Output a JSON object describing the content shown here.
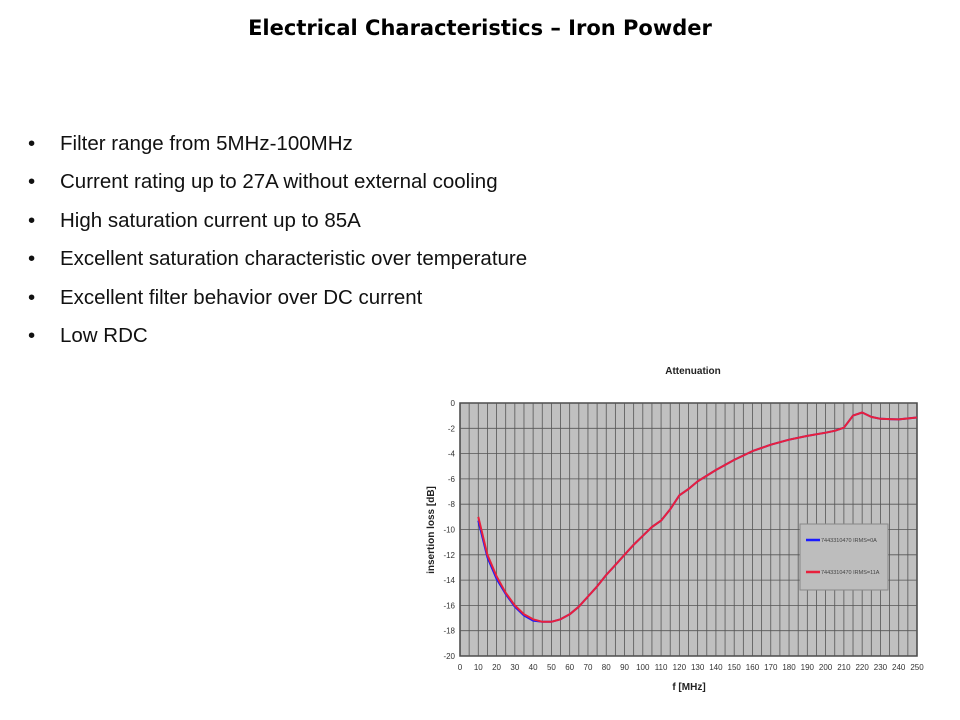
{
  "slide": {
    "title": "Electrical Characteristics – Iron Powder",
    "bullets": [
      "Filter range from 5MHz-100MHz",
      "Current rating up to 27A without external cooling",
      "High saturation current up to 85A",
      "Excellent saturation characteristic over temperature",
      "Excellent filter behavior over DC current",
      "Low RDC"
    ],
    "bullet_symbol": "•"
  },
  "chart_data": {
    "type": "line",
    "title": "Attenuation",
    "xlabel": "f [MHz]",
    "ylabel": "insertion loss  [dB]",
    "xlim": [
      0,
      250
    ],
    "ylim": [
      -20,
      0
    ],
    "xticks": [
      0,
      10,
      20,
      30,
      40,
      50,
      60,
      70,
      80,
      90,
      100,
      110,
      120,
      130,
      140,
      150,
      160,
      170,
      180,
      190,
      200,
      210,
      220,
      230,
      240,
      250
    ],
    "yticks": [
      0,
      -2,
      -4,
      -6,
      -8,
      -10,
      -12,
      -14,
      -16,
      -18,
      -20
    ],
    "grid": true,
    "legend_position": "right",
    "background": "#c0c0c0",
    "series": [
      {
        "name": "7443310470 IRMS=0A",
        "color": "#1a1aff",
        "x": [
          10,
          15,
          20,
          25,
          30,
          35,
          40,
          45,
          50,
          55,
          60,
          65,
          70,
          75,
          80,
          85,
          90,
          95,
          100,
          105,
          110,
          115,
          120,
          125,
          130,
          140,
          150,
          160,
          170,
          180,
          190,
          200,
          205,
          210,
          215,
          220,
          225,
          230,
          240,
          250
        ],
        "y": [
          -9.3,
          -12.2,
          -13.9,
          -15.1,
          -16.1,
          -16.8,
          -17.2,
          -17.3,
          -17.3,
          -17.1,
          -16.7,
          -16.1,
          -15.3,
          -14.5,
          -13.6,
          -12.8,
          -12.0,
          -11.2,
          -10.5,
          -9.8,
          -9.3,
          -8.4,
          -7.3,
          -6.8,
          -6.2,
          -5.3,
          -4.5,
          -3.8,
          -3.3,
          -2.9,
          -2.6,
          -2.35,
          -2.2,
          -1.95,
          -1.0,
          -0.75,
          -1.1,
          -1.25,
          -1.3,
          -1.15
        ]
      },
      {
        "name": "7443310470 IRMS=11A",
        "color": "#e8203c",
        "x": [
          10,
          15,
          20,
          25,
          30,
          35,
          40,
          45,
          50,
          55,
          60,
          65,
          70,
          75,
          80,
          85,
          90,
          95,
          100,
          105,
          110,
          115,
          120,
          125,
          130,
          140,
          150,
          160,
          170,
          180,
          190,
          200,
          205,
          210,
          215,
          220,
          225,
          230,
          240,
          250
        ],
        "y": [
          -9.0,
          -12.0,
          -13.7,
          -15.0,
          -16.0,
          -16.7,
          -17.1,
          -17.3,
          -17.3,
          -17.1,
          -16.7,
          -16.1,
          -15.3,
          -14.5,
          -13.6,
          -12.8,
          -12.0,
          -11.2,
          -10.5,
          -9.8,
          -9.3,
          -8.4,
          -7.3,
          -6.8,
          -6.2,
          -5.3,
          -4.5,
          -3.8,
          -3.3,
          -2.9,
          -2.6,
          -2.35,
          -2.2,
          -1.95,
          -1.0,
          -0.75,
          -1.1,
          -1.25,
          -1.3,
          -1.15
        ]
      }
    ]
  }
}
